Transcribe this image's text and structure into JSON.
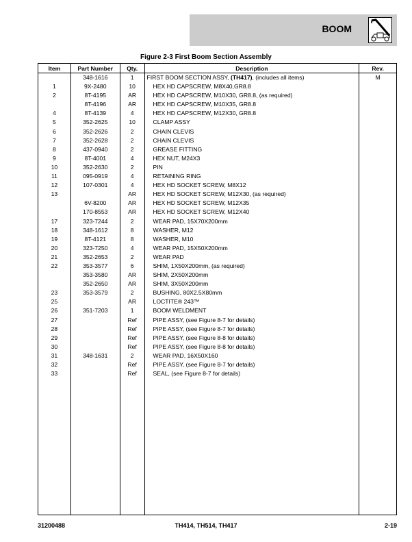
{
  "header": {
    "section": "BOOM",
    "icon": "boom-telehandler-icon"
  },
  "figure_title": "Figure 2-3 First Boom Section Assembly",
  "table": {
    "columns": [
      "Item",
      "Part Number",
      "Qty.",
      "Description",
      "Rev."
    ],
    "rows": [
      {
        "item": "",
        "part": "348-1616",
        "qty": "1",
        "desc_pre": "FIRST BOOM SECTION ASSY, ",
        "desc_bold": "(TH417)",
        "desc_post": ", (includes all items)",
        "rev": "M"
      },
      {
        "item": "1",
        "part": "9X-2480",
        "qty": "10",
        "desc": "HEX HD CAPSCREW, M8X40,GR8.8",
        "rev": ""
      },
      {
        "item": "2",
        "part": "8T-4195",
        "qty": "AR",
        "desc": "HEX HD CAPSCREW, M10X30, GR8.8, (as required)",
        "rev": ""
      },
      {
        "item": "",
        "part": "8T-4196",
        "qty": "AR",
        "desc": "HEX HD CAPSCREW, M10X35, GR8.8",
        "rev": ""
      },
      {
        "item": "4",
        "part": "8T-4139",
        "qty": "4",
        "desc": "HEX HD CAPSCREW, M12X30, GR8.8",
        "rev": ""
      },
      {
        "item": "5",
        "part": "352-2625",
        "qty": "10",
        "desc": "CLAMP ASSY",
        "rev": ""
      },
      {
        "item": "6",
        "part": "352-2626",
        "qty": "2",
        "desc": "CHAIN CLEVIS",
        "rev": ""
      },
      {
        "item": "7",
        "part": "352-2628",
        "qty": "2",
        "desc": "CHAIN CLEVIS",
        "rev": ""
      },
      {
        "item": "8",
        "part": "437-0940",
        "qty": "2",
        "desc": "GREASE FITTING",
        "rev": ""
      },
      {
        "item": "9",
        "part": "8T-4001",
        "qty": "4",
        "desc": "HEX NUT, M24X3",
        "rev": ""
      },
      {
        "item": "10",
        "part": "352-2630",
        "qty": "2",
        "desc": "PIN",
        "rev": ""
      },
      {
        "item": "11",
        "part": "095-0919",
        "qty": "4",
        "desc": "RETAINING RING",
        "rev": ""
      },
      {
        "item": "12",
        "part": "107-0301",
        "qty": "4",
        "desc": "HEX HD SOCKET SCREW, M8X12",
        "rev": ""
      },
      {
        "item": "13",
        "part": "",
        "qty": "AR",
        "desc": "HEX HD SOCKET SCREW, M12X30, (as required)",
        "rev": ""
      },
      {
        "item": "",
        "part": "6V-8200",
        "qty": "AR",
        "desc": "HEX HD SOCKET SCREW, M12X35",
        "rev": ""
      },
      {
        "item": "",
        "part": "170-8553",
        "qty": "AR",
        "desc": "HEX HD SOCKET SCREW, M12X40",
        "rev": ""
      },
      {
        "item": "17",
        "part": "323-7244",
        "qty": "2",
        "desc": "WEAR PAD, 15X70X200mm",
        "rev": ""
      },
      {
        "item": "18",
        "part": "348-1612",
        "qty": "8",
        "desc": "WASHER, M12",
        "rev": ""
      },
      {
        "item": "19",
        "part": "8T-4121",
        "qty": "8",
        "desc": "WASHER, M10",
        "rev": ""
      },
      {
        "item": "20",
        "part": "323-7250",
        "qty": "4",
        "desc": "WEAR PAD, 15X50X200mm",
        "rev": ""
      },
      {
        "item": "21",
        "part": "352-2653",
        "qty": "2",
        "desc": "WEAR PAD",
        "rev": ""
      },
      {
        "item": "22",
        "part": "353-3577",
        "qty": "6",
        "desc": "SHIM, 1X50X200mm, (as required)",
        "rev": ""
      },
      {
        "item": "",
        "part": "353-3580",
        "qty": "AR",
        "desc": "SHIM, 2X50X200mm",
        "rev": ""
      },
      {
        "item": "",
        "part": "352-2650",
        "qty": "AR",
        "desc": "SHIM, 3X50X200mm",
        "rev": ""
      },
      {
        "item": "23",
        "part": "353-3579",
        "qty": "2",
        "desc": "BUSHING, 80X2.5X80mm",
        "rev": ""
      },
      {
        "item": "25",
        "part": "",
        "qty": "AR",
        "desc": "LOCTITE® 243™",
        "rev": ""
      },
      {
        "item": "26",
        "part": "351-7203",
        "qty": "1",
        "desc": "BOOM WELDMENT",
        "rev": ""
      },
      {
        "item": "27",
        "part": "",
        "qty": "Ref",
        "desc": "PIPE ASSY, (see Figure 8-7 for details)",
        "rev": ""
      },
      {
        "item": "28",
        "part": "",
        "qty": "Ref",
        "desc": "PIPE ASSY, (see Figure 8-7 for details)",
        "rev": ""
      },
      {
        "item": "29",
        "part": "",
        "qty": "Ref",
        "desc": "PIPE ASSY, (see Figure 8-8 for details)",
        "rev": ""
      },
      {
        "item": "30",
        "part": "",
        "qty": "Ref",
        "desc": "PIPE ASSY, (see Figure 8-8 for details)",
        "rev": ""
      },
      {
        "item": "31",
        "part": "348-1631",
        "qty": "2",
        "desc": "WEAR PAD, 16X50X160",
        "rev": ""
      },
      {
        "item": "32",
        "part": "",
        "qty": "Ref",
        "desc": "PIPE ASSY, (see Figure 8-7 for details)",
        "rev": ""
      },
      {
        "item": "33",
        "part": "",
        "qty": "Ref",
        "desc": "SEAL, (see Figure 8-7 for details)",
        "rev": ""
      }
    ]
  },
  "footer": {
    "left": "31200488",
    "center": "TH414, TH514, TH417",
    "right": "2-19"
  }
}
